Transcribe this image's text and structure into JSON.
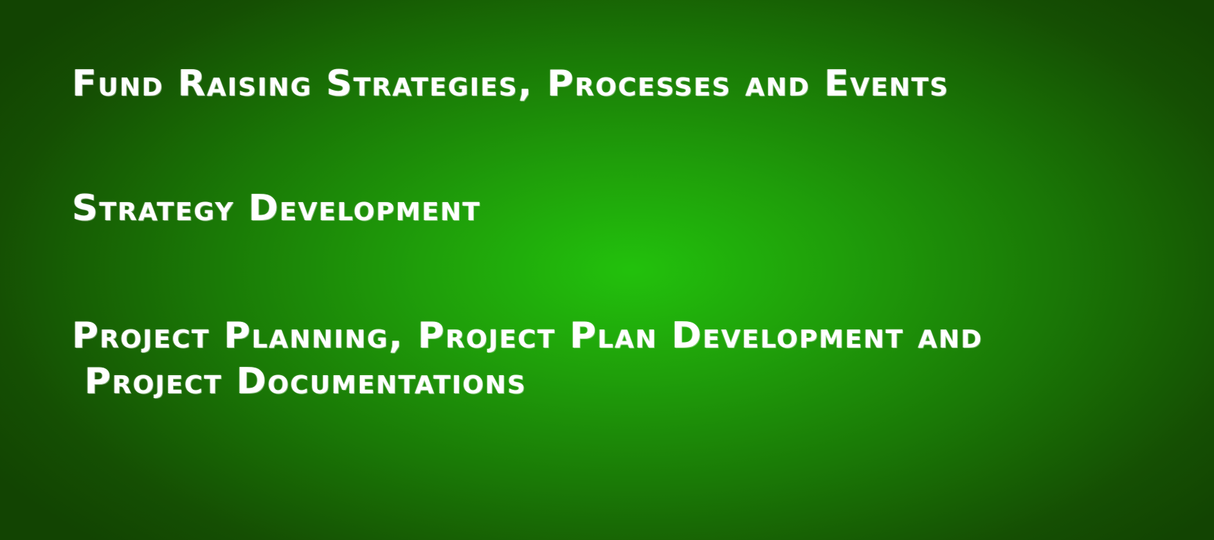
{
  "items": [
    {
      "lines": [
        "Fund Raising Strategies, Processes and Events"
      ]
    },
    {
      "lines": [
        "Strategy Development"
      ]
    },
    {
      "lines": [
        "Project Planning, Project Plan Development and",
        "Project Documentations"
      ]
    }
  ]
}
